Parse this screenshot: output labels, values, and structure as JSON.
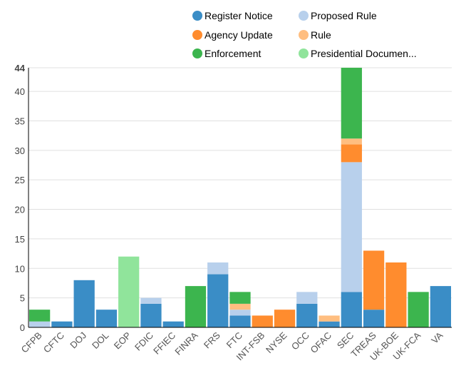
{
  "chart_data": {
    "type": "bar",
    "stacked": true,
    "title": "",
    "xlabel": "",
    "ylabel": "",
    "ylim": [
      0,
      44
    ],
    "yticks": [
      0,
      5,
      10,
      15,
      20,
      25,
      30,
      35,
      40,
      44
    ],
    "grid": true,
    "legend_position": "top",
    "categories": [
      "CFPB",
      "CFTC",
      "DOJ",
      "DOL",
      "EOP",
      "FDIC",
      "FFIEC",
      "FINRA",
      "FRS",
      "FTC",
      "INT-FSB",
      "NYSE",
      "OCC",
      "OFAC",
      "SEC",
      "TREAS",
      "UK-BOE",
      "UK-FCA",
      "VA"
    ],
    "series": [
      {
        "name": "Register Notice",
        "color": "#3a8dc6",
        "values": [
          0,
          1,
          8,
          3,
          0,
          4,
          1,
          0,
          9,
          2,
          0,
          0,
          4,
          1,
          6,
          3,
          0,
          0,
          7
        ]
      },
      {
        "name": "Proposed Rule",
        "color": "#b8d0ec",
        "values": [
          1,
          0,
          0,
          0,
          0,
          1,
          0,
          0,
          2,
          1,
          0,
          0,
          2,
          0,
          22,
          0,
          0,
          0,
          0
        ]
      },
      {
        "name": "Agency Update",
        "color": "#ff8c2e",
        "values": [
          0,
          0,
          0,
          0,
          0,
          0,
          0,
          0,
          0,
          0,
          2,
          3,
          0,
          0,
          3,
          10,
          11,
          0,
          0
        ]
      },
      {
        "name": "Rule",
        "color": "#ffbe80",
        "values": [
          0,
          0,
          0,
          0,
          0,
          0,
          0,
          0,
          0,
          1,
          0,
          0,
          0,
          1,
          1,
          0,
          0,
          0,
          0
        ]
      },
      {
        "name": "Enforcement",
        "color": "#3cb54e",
        "values": [
          2,
          0,
          0,
          0,
          0,
          0,
          0,
          7,
          0,
          2,
          0,
          0,
          0,
          0,
          12,
          0,
          0,
          6,
          0
        ]
      },
      {
        "name": "Presidential Documen...",
        "color": "#90e49b",
        "values": [
          0,
          0,
          0,
          0,
          12,
          0,
          0,
          0,
          0,
          0,
          0,
          0,
          0,
          0,
          0,
          0,
          0,
          0,
          0
        ]
      }
    ],
    "legend_order": [
      "Register Notice",
      "Proposed Rule",
      "Agency Update",
      "Rule",
      "Enforcement",
      "Presidential Documen..."
    ]
  }
}
